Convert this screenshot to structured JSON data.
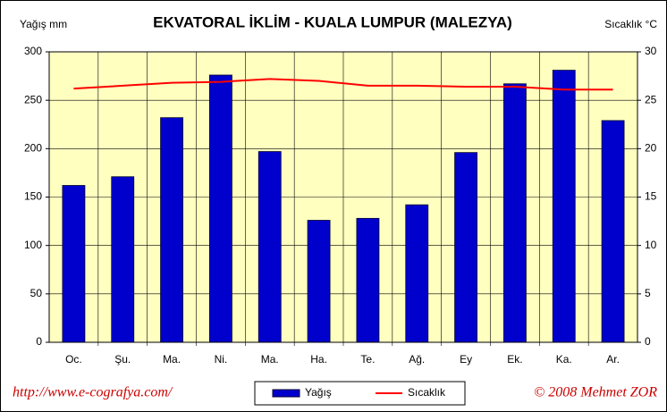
{
  "chart_data": {
    "type": "bar-line",
    "title": "EKVATORAL İKLİM - KUALA LUMPUR (MALEZYA)",
    "ylabel": "Yağış mm",
    "y2label": "Sıcaklık  °C",
    "categories": [
      "Oc.",
      "Şu.",
      "Ma.",
      "Ni.",
      "Ma.",
      "Ha.",
      "Te.",
      "Ağ.",
      "Ey",
      "Ek.",
      "Ka.",
      "Ar."
    ],
    "series": [
      {
        "name": "Yağış",
        "type": "bar",
        "color": "#0000cc",
        "axis": "y",
        "values": [
          162,
          171,
          232,
          276,
          197,
          126,
          128,
          142,
          196,
          267,
          281,
          229
        ]
      },
      {
        "name": "Sıcaklık",
        "type": "line",
        "color": "#ff0000",
        "axis": "y2",
        "values": [
          26.2,
          26.5,
          26.8,
          26.9,
          27.2,
          27.0,
          26.5,
          26.5,
          26.4,
          26.4,
          26.1,
          26.1
        ]
      }
    ],
    "ylim": [
      0,
      300
    ],
    "yticks": [
      0,
      50,
      100,
      150,
      200,
      250,
      300
    ],
    "y2lim": [
      0,
      30
    ],
    "y2ticks": [
      0,
      5,
      10,
      15,
      20,
      25,
      30
    ],
    "grid": true,
    "legend": "bottom",
    "source": "http://www.e-cografya.com/",
    "credit": "© 2008  Mehmet ZOR"
  }
}
